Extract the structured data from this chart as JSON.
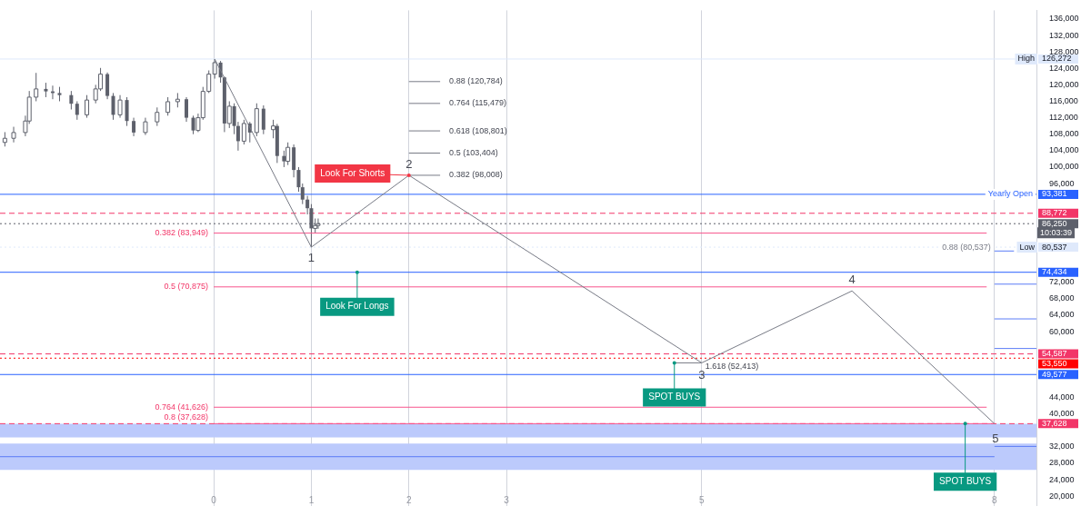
{
  "chart_data": {
    "type": "candlestick",
    "color": "#5d606b",
    "x": [
      -2.14,
      -2.05,
      -1.93,
      -1.89,
      -1.82,
      -1.72,
      -1.65,
      -1.58,
      -1.46,
      -1.4,
      -1.3,
      -1.21,
      -1.16,
      -1.09,
      -1.03,
      -0.96,
      -0.89,
      -0.82,
      -0.7,
      -0.58,
      -0.47,
      -0.37,
      -0.28,
      -0.21,
      -0.16,
      -0.11,
      -0.05,
      0.01,
      0.07,
      0.11,
      0.16,
      0.21,
      0.25,
      0.31,
      0.37,
      0.44,
      0.51,
      0.61,
      0.65,
      0.72,
      0.76,
      0.82,
      0.87,
      0.91,
      0.96,
      1.0,
      1.04,
      1.07
    ],
    "ohlc": [
      [
        106000,
        108500,
        105000,
        107000
      ],
      [
        107000,
        109800,
        106000,
        108400
      ],
      [
        108400,
        112500,
        107500,
        111200
      ],
      [
        111200,
        118500,
        110500,
        117000
      ],
      [
        117000,
        122900,
        116000,
        119000
      ],
      [
        119000,
        120500,
        117000,
        118400
      ],
      [
        118400,
        119800,
        116500,
        118000
      ],
      [
        118000,
        119500,
        116000,
        117500
      ],
      [
        117500,
        118500,
        114000,
        115400
      ],
      [
        115400,
        116000,
        111500,
        112700
      ],
      [
        112700,
        117500,
        112000,
        116300
      ],
      [
        116300,
        120000,
        115500,
        119000
      ],
      [
        119000,
        124100,
        118500,
        122600
      ],
      [
        122600,
        123000,
        116500,
        117300
      ],
      [
        117300,
        118000,
        111500,
        112700
      ],
      [
        112700,
        117500,
        112000,
        116300
      ],
      [
        116300,
        117000,
        110000,
        111200
      ],
      [
        111200,
        112000,
        107500,
        108400
      ],
      [
        108400,
        112000,
        107800,
        111000
      ],
      [
        111000,
        114500,
        110000,
        113300
      ],
      [
        113300,
        117000,
        112500,
        115900
      ],
      [
        115900,
        118000,
        114500,
        116500
      ],
      [
        116500,
        117000,
        111000,
        112000
      ],
      [
        112000,
        112500,
        108000,
        108900
      ],
      [
        108900,
        113000,
        108500,
        112000
      ],
      [
        112000,
        119500,
        111500,
        118400
      ],
      [
        118400,
        123500,
        118000,
        122600
      ],
      [
        122600,
        126272,
        121500,
        125400
      ],
      [
        125400,
        125800,
        120500,
        121800
      ],
      [
        121800,
        122000,
        108500,
        110600
      ],
      [
        110600,
        116000,
        109500,
        114800
      ],
      [
        114800,
        115500,
        108000,
        110000
      ],
      [
        110000,
        111000,
        104000,
        106300
      ],
      [
        106300,
        111500,
        105500,
        110600
      ],
      [
        110600,
        111000,
        106000,
        108400
      ],
      [
        108400,
        115500,
        107500,
        114200
      ],
      [
        114200,
        115000,
        108000,
        109100
      ],
      [
        109100,
        111500,
        107000,
        110000
      ],
      [
        110000,
        110500,
        101000,
        102700
      ],
      [
        102700,
        104000,
        100000,
        101400
      ],
      [
        101400,
        106000,
        100500,
        104800
      ],
      [
        104800,
        105500,
        97500,
        99300
      ],
      [
        99300,
        100000,
        94000,
        95100
      ],
      [
        95100,
        96000,
        91000,
        92100
      ],
      [
        92100,
        93000,
        88500,
        90000
      ],
      [
        90000,
        91000,
        80537,
        85100
      ],
      [
        85100,
        87500,
        84000,
        85800
      ],
      [
        85800,
        87500,
        85000,
        86250
      ]
    ],
    "series": [
      {
        "type": "line",
        "color": "#787b86",
        "x": [
          0.01,
          1,
          2,
          5,
          6.54,
          8
        ],
        "values": [
          126272,
          80537,
          98008,
          52413,
          69900,
          37628
        ]
      },
      {
        "type": "line",
        "color": "#787b86",
        "x": [
          2,
          2.32
        ],
        "values": [
          120784,
          120784
        ]
      },
      {
        "type": "line",
        "color": "#787b86",
        "x": [
          2,
          2.32
        ],
        "values": [
          115479,
          115479
        ]
      },
      {
        "type": "line",
        "color": "#787b86",
        "x": [
          2,
          2.32
        ],
        "values": [
          108801,
          108801
        ]
      },
      {
        "type": "line",
        "color": "#787b86",
        "x": [
          2,
          2.32
        ],
        "values": [
          103404,
          103404
        ]
      },
      {
        "type": "line",
        "color": "#787b86",
        "x": [
          2,
          2.32
        ],
        "values": [
          98008,
          98008
        ]
      },
      {
        "type": "line",
        "color": "#787b86",
        "x": [
          4.72,
          5
        ],
        "values": [
          52413,
          52413
        ]
      },
      {
        "type": "line",
        "color": "#f7548c",
        "x": [
          0,
          7.92
        ],
        "values": [
          83949,
          83949
        ]
      },
      {
        "type": "line",
        "color": "#f7548c",
        "x": [
          0,
          7.92
        ],
        "values": [
          70875,
          70875
        ]
      },
      {
        "type": "line",
        "color": "#f7548c",
        "x": [
          0,
          7.92
        ],
        "values": [
          41626,
          41626
        ]
      },
      {
        "type": "line",
        "color": "#f7548c",
        "x": [
          0,
          8
        ],
        "values": [
          37628,
          37628
        ]
      },
      {
        "type": "line",
        "color": "#5b7cf7",
        "x": [
          -2.19,
          8
        ],
        "values": [
          29600,
          29600
        ]
      },
      {
        "type": "line",
        "color": "#5b7cf7",
        "x": [
          8,
          8.2
        ],
        "values": [
          79600,
          79600
        ]
      },
      {
        "type": "line",
        "color": "#5b7cf7",
        "x": [
          8,
          8.43
        ],
        "values": [
          71550,
          71550
        ]
      },
      {
        "type": "line",
        "color": "#5b7cf7",
        "x": [
          8,
          8.43
        ],
        "values": [
          63100,
          63100
        ]
      },
      {
        "type": "line",
        "color": "#5b7cf7",
        "x": [
          8,
          8.43
        ],
        "values": [
          55900,
          55900
        ]
      },
      {
        "type": "line",
        "color": "#5b7cf7",
        "x": [
          8,
          8.43
        ],
        "values": [
          32100,
          32100
        ]
      }
    ],
    "ref_lines": [
      {
        "axis": "y",
        "value": 126272,
        "label": "126,272",
        "color": "#dfe9fb",
        "line_style": "solid"
      },
      {
        "axis": "y",
        "value": 93381,
        "label": "93,381",
        "color": "#2962ff",
        "line_style": "solid"
      },
      {
        "axis": "y",
        "value": 88772,
        "label": "88,772",
        "color": "#f23668",
        "line_style": "dashed"
      },
      {
        "axis": "y",
        "value": 86250,
        "label": "86,250",
        "color": "#5d606b",
        "line_style": "dotted"
      },
      {
        "axis": "y",
        "value": 80537,
        "label": "80,537",
        "color": "#dfe9fb",
        "line_style": "dotted"
      },
      {
        "axis": "y",
        "value": 74434,
        "label": "74,434",
        "color": "#2962ff",
        "line_style": "solid"
      },
      {
        "axis": "y",
        "value": 54587,
        "label": "54,587",
        "color": "#f23668",
        "line_style": "dashed"
      },
      {
        "axis": "y",
        "value": 53550,
        "label": "53,550",
        "color": "#ff0000",
        "line_style": "dotted"
      },
      {
        "axis": "y",
        "value": 49577,
        "label": "49,577",
        "color": "#2962ff",
        "line_style": "solid"
      },
      {
        "axis": "y",
        "value": 37628,
        "label": "37,628",
        "color": "#f23668",
        "line_style": "dashed"
      }
    ],
    "bands": [
      {
        "axis": "y",
        "from": 34300,
        "to": 37600,
        "color": "#bccafc"
      },
      {
        "axis": "y",
        "from": 26400,
        "to": 32800,
        "color": "#bccafc"
      }
    ],
    "annotations": [
      {
        "text": "1",
        "x": 1,
        "y": 80537
      },
      {
        "text": "2",
        "x": 2,
        "y": 98008
      },
      {
        "text": "3",
        "x": 5,
        "y": 52413
      },
      {
        "text": "4",
        "x": 6.54,
        "y": 69900
      },
      {
        "text": "5",
        "x": 8,
        "y": 37628
      },
      {
        "text": "0.88 (120,784)",
        "x": 2.32,
        "y": 120784
      },
      {
        "text": "0.764 (115,479)",
        "x": 2.32,
        "y": 115479
      },
      {
        "text": "0.618 (108,801)",
        "x": 2.32,
        "y": 108801
      },
      {
        "text": "0.5 (103,404)",
        "x": 2.32,
        "y": 103404
      },
      {
        "text": "0.382 (98,008)",
        "x": 2.32,
        "y": 98008
      },
      {
        "text": "1.618 (52,413)",
        "x": 5,
        "y": 52413
      },
      {
        "text": "0.382 (83,949)",
        "x": 0,
        "y": 83949
      },
      {
        "text": "0.5 (70,875)",
        "x": 0,
        "y": 70875
      },
      {
        "text": "0.764 (41,626)",
        "x": 0,
        "y": 41626
      },
      {
        "text": "0.8 (37,628)",
        "x": 0,
        "y": 37628
      },
      {
        "text": "0.88 (80,537)",
        "x": 8,
        "y": 80537
      },
      {
        "text": "Look For Shorts",
        "x": 2,
        "y": 98008
      },
      {
        "text": "Look For Longs",
        "x": 1.47,
        "y": 74434
      },
      {
        "text": "SPOT BUYS",
        "x": 4.72,
        "y": 52413
      },
      {
        "text": "SPOT BUYS",
        "x": 7.7,
        "y": 37628
      },
      {
        "text": "Yearly Open",
        "x": 8.43,
        "y": 93381
      },
      {
        "text": "Low",
        "x": 8.43,
        "y": 80537
      },
      {
        "text": "High",
        "x": 8.43,
        "y": 126272
      },
      {
        "text": "10:03:39",
        "x": 8.43,
        "y": 86250
      }
    ],
    "xlim": [
      -2.19,
      8.43
    ],
    "xticks": [
      0,
      1,
      2,
      3,
      5,
      8
    ],
    "ylim": [
      17700,
      138100
    ],
    "yticks": [
      {
        "value": 20000,
        "label": "20,000"
      },
      {
        "value": 24000,
        "label": "24,000"
      },
      {
        "value": 28000,
        "label": "28,000"
      },
      {
        "value": 32000,
        "label": "32,000"
      },
      {
        "value": 40000,
        "label": "40,000"
      },
      {
        "value": 44000,
        "label": "44,000"
      },
      {
        "value": 60000,
        "label": "60,000"
      },
      {
        "value": 64000,
        "label": "64,000"
      },
      {
        "value": 68000,
        "label": "68,000"
      },
      {
        "value": 72000,
        "label": "72,000"
      },
      {
        "value": 96000,
        "label": "96,000"
      },
      {
        "value": 100000,
        "label": "100,000"
      },
      {
        "value": 104000,
        "label": "104,000"
      },
      {
        "value": 108000,
        "label": "108,000"
      },
      {
        "value": 112000,
        "label": "112,000"
      },
      {
        "value": 116000,
        "label": "116,000"
      },
      {
        "value": 120000,
        "label": "120,000"
      },
      {
        "value": 124000,
        "label": "124,000"
      },
      {
        "value": 128000,
        "label": "128,000"
      },
      {
        "value": 132000,
        "label": "132,000"
      },
      {
        "value": 136000,
        "label": "136,000"
      }
    ],
    "grid": "x",
    "legend": false
  }
}
